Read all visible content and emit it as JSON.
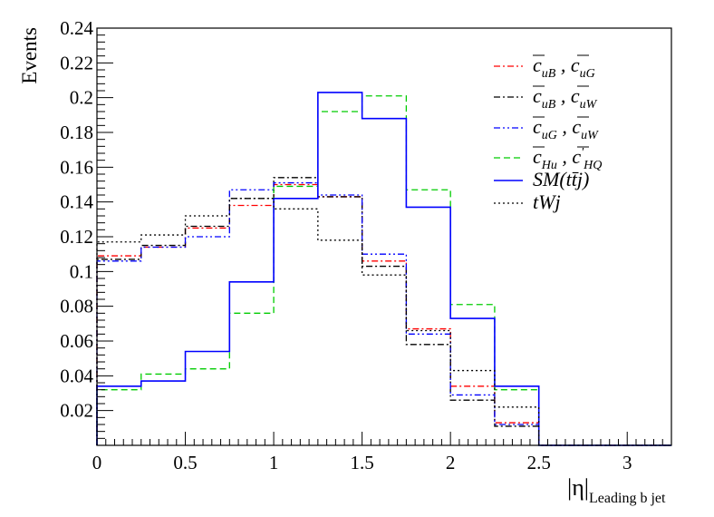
{
  "chart_data": {
    "type": "line",
    "step": true,
    "xlabel": "|η|",
    "xlabel_sub": "Leading b jet",
    "ylabel": "Events",
    "xlim": [
      0,
      3.25
    ],
    "ylim": [
      0,
      0.24
    ],
    "xticks": [
      0,
      0.5,
      1,
      1.5,
      2,
      2.5,
      3
    ],
    "xtick_labels": [
      "0",
      "0.5",
      "1",
      "1.5",
      "2",
      "2.5",
      "3"
    ],
    "yticks": [
      0.02,
      0.04,
      0.06,
      0.08,
      0.1,
      0.12,
      0.14,
      0.16,
      0.18,
      0.2,
      0.22,
      0.24
    ],
    "ytick_labels": [
      "0.02",
      "0.04",
      "0.06",
      "0.08",
      "0.1",
      "0.12",
      "0.14",
      "0.16",
      "0.18",
      "0.2",
      "0.22",
      "0.24"
    ],
    "grid": false,
    "legend_position": "top-right",
    "bin_edges": [
      0,
      0.25,
      0.5,
      0.75,
      1.0,
      1.25,
      1.5,
      1.75,
      2.0,
      2.25,
      2.5,
      2.75,
      3.0,
      3.25
    ],
    "series": [
      {
        "name": "c̄uB , c̄uG",
        "legend": {
          "a": "c",
          "asub": "uB",
          "sep": ",",
          "b": "c",
          "bsub": "uG",
          "bprime": false
        },
        "color": "#ff0000",
        "dash": "7,3,2,3",
        "values": [
          0.109,
          0.114,
          0.125,
          0.138,
          0.15,
          0.143,
          0.106,
          0.067,
          0.034,
          0.013,
          0,
          0,
          0
        ]
      },
      {
        "name": "c̄uB , c̄uW",
        "legend": {
          "a": "c",
          "asub": "uB",
          "sep": ",",
          "b": "c",
          "bsub": "uW",
          "bprime": false
        },
        "color": "#000000",
        "dash": "7,3,2,3",
        "values": [
          0.107,
          0.115,
          0.126,
          0.142,
          0.154,
          0.143,
          0.103,
          0.058,
          0.026,
          0.011,
          0,
          0,
          0
        ]
      },
      {
        "name": "c̄uG , c̄uW",
        "legend": {
          "a": "c",
          "asub": "uG",
          "sep": ",",
          "b": "c",
          "bsub": "uW",
          "bprime": false
        },
        "color": "#0000ff",
        "dash": "7,3,2,3,2,3",
        "values": [
          0.106,
          0.114,
          0.12,
          0.147,
          0.151,
          0.144,
          0.11,
          0.064,
          0.029,
          0.012,
          0,
          0,
          0
        ]
      },
      {
        "name": "c̄Hu , c̄'HQ",
        "legend": {
          "a": "c",
          "asub": "Hu",
          "sep": ",",
          "b": "c",
          "bsub": "HQ",
          "bprime": true
        },
        "color": "#00cc00",
        "dash": "7,4",
        "values": [
          0.032,
          0.041,
          0.044,
          0.076,
          0.149,
          0.192,
          0.201,
          0.147,
          0.081,
          0.032,
          0,
          0,
          0
        ]
      },
      {
        "name": "SM(tt̄j)",
        "legend": {
          "text": "SM(tt̄j)"
        },
        "color": "#0000ff",
        "dash": "",
        "values": [
          0.034,
          0.037,
          0.054,
          0.094,
          0.142,
          0.203,
          0.188,
          0.137,
          0.073,
          0.034,
          0,
          0,
          0
        ]
      },
      {
        "name": "tWj",
        "legend": {
          "text": "tWj"
        },
        "color": "#000000",
        "dash": "2,3",
        "values": [
          0.117,
          0.121,
          0.132,
          0.142,
          0.136,
          0.118,
          0.098,
          0.066,
          0.043,
          0.022,
          0,
          0,
          0
        ]
      }
    ]
  }
}
